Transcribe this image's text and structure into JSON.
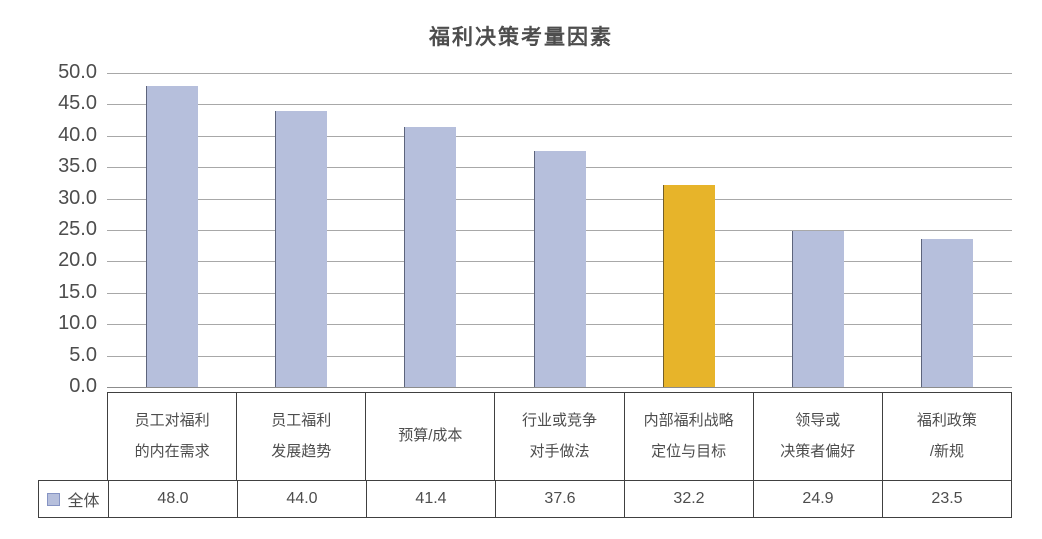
{
  "title": "福利决策考量因素",
  "legend": {
    "label": "全体"
  },
  "colors": {
    "bar": "#b6bfdc",
    "highlight": "#e7b42a",
    "grid": "#a8a8a8",
    "axis": "#8c8c8c",
    "text": "#4d4d4d",
    "table_border": "#404040",
    "legend_swatch_border": "#8694c4"
  },
  "chart_data": {
    "type": "bar",
    "title": "福利决策考量因素",
    "categories": [
      "员工对福利的内在需求",
      "员工福利发展趋势",
      "预算/成本",
      "行业或竞争对手做法",
      "内部福利战略定位与目标",
      "领导或决策者偏好",
      "福利政策/新规"
    ],
    "category_lines": [
      [
        "员工对福利",
        "的内在需求"
      ],
      [
        "员工福利",
        "发展趋势"
      ],
      [
        "预算/成本"
      ],
      [
        "行业或竞争",
        "对手做法"
      ],
      [
        "内部福利战略",
        "定位与目标"
      ],
      [
        "领导或",
        "决策者偏好"
      ],
      [
        "福利政策",
        "/新规"
      ]
    ],
    "series": [
      {
        "name": "全体",
        "values": [
          48.0,
          44.0,
          41.4,
          37.6,
          32.2,
          24.9,
          23.5
        ]
      }
    ],
    "value_labels": [
      "48.0",
      "44.0",
      "41.4",
      "37.6",
      "32.2",
      "24.9",
      "23.5"
    ],
    "highlight_index": 4,
    "xlabel": "",
    "ylabel": "",
    "ylim": [
      0,
      50
    ],
    "ytick_step": 5,
    "ytick_labels": [
      "0.0",
      "5.0",
      "10.0",
      "15.0",
      "20.0",
      "25.0",
      "30.0",
      "35.0",
      "40.0",
      "45.0",
      "50.0"
    ],
    "grid": true,
    "legend_position": "bottom-left-table"
  }
}
